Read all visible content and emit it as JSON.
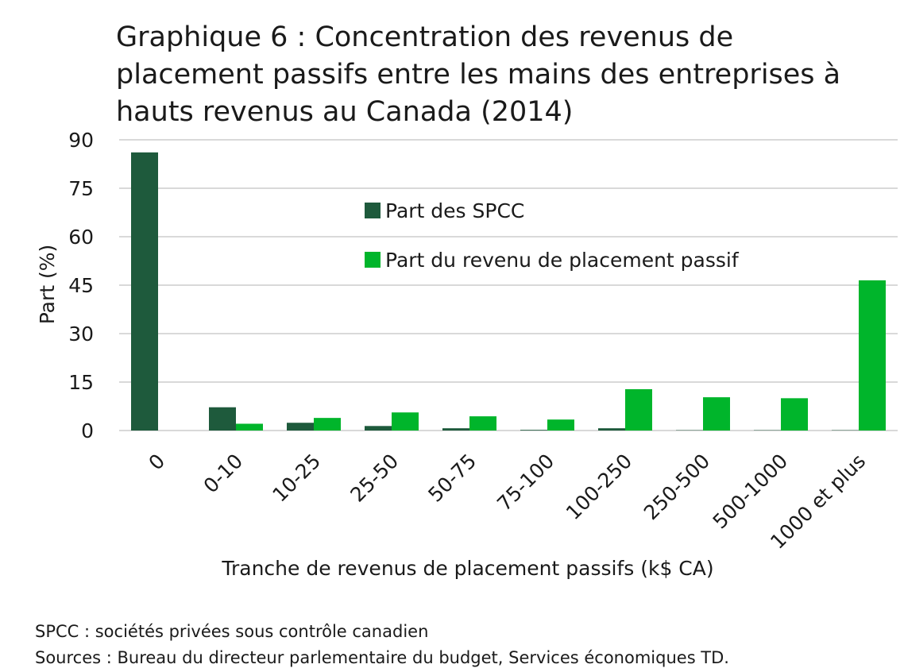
{
  "title": "Graphique 6 : Concentration des revenus de placement passifs entre les mains des entreprises à hauts revenus au Canada (2014)",
  "footnotes": [
    "SPCC : sociétés privées sous contrôle canadien",
    "Sources : Bureau du directeur parlementaire du budget, Services économiques TD."
  ],
  "chart_data": {
    "type": "bar",
    "xlabel": "Tranche de revenus de placement passifs (k$ CA)",
    "ylabel": "Part (%)",
    "ylim": [
      0,
      90
    ],
    "yticks": [
      0,
      15,
      30,
      45,
      60,
      75,
      90
    ],
    "grid": true,
    "legend_position": "top-center",
    "categories": [
      "0",
      "0-10",
      "10-25",
      "25-50",
      "50-75",
      "75-100",
      "100-250",
      "250-500",
      "500-1000",
      "1000 et plus"
    ],
    "series": [
      {
        "name": "Part des SPCC",
        "color": "#1e5a3c",
        "values": [
          86.1,
          7.2,
          2.4,
          1.4,
          0.7,
          0.2,
          0.7,
          0.1,
          0.1,
          0.1
        ]
      },
      {
        "name": "Part du revenu de placement passif",
        "color": "#00b52b",
        "values": [
          0,
          2.1,
          3.9,
          5.6,
          4.4,
          3.4,
          12.8,
          10.3,
          10.0,
          46.5
        ]
      }
    ]
  }
}
